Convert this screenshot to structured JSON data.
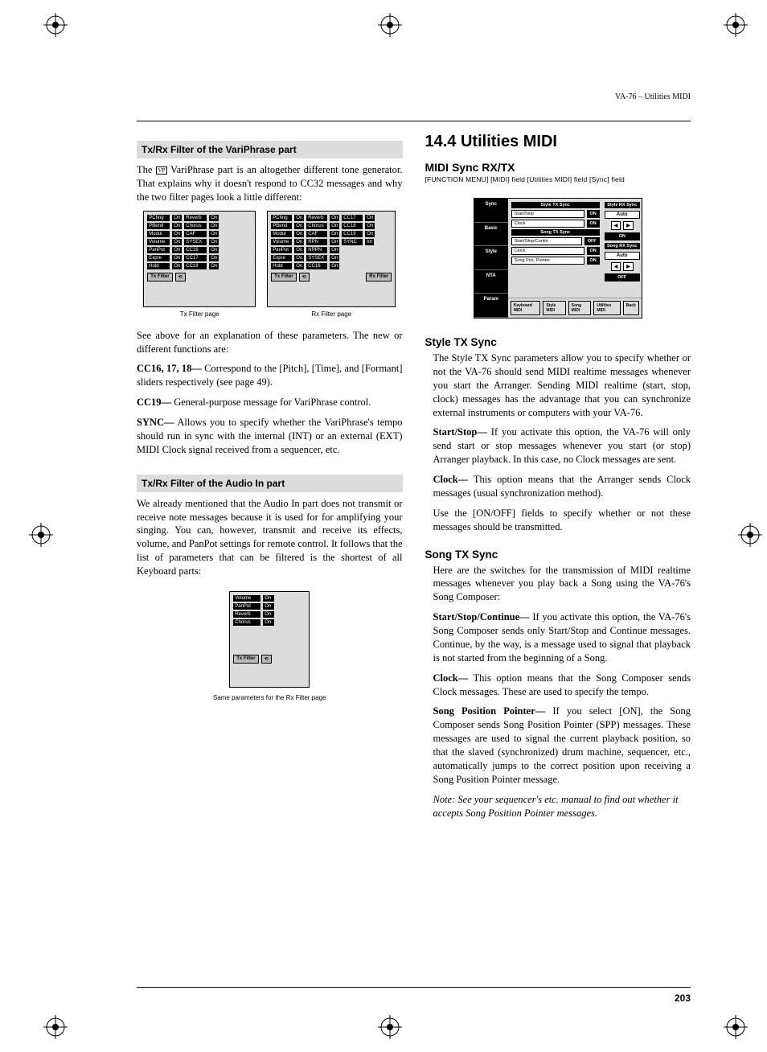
{
  "header": {
    "running_head": "VA-76 – Utilities MIDI"
  },
  "page_number": "203",
  "left": {
    "sec1_heading": "Tx/Rx Filter of the VariPhrase part",
    "p1a": "The ",
    "p1_icon_label": "VP",
    "p1b": " VariPhrase part is an altogether different tone generator. That explains why it doesn't respond to CC32 messages and why the two filter pages look a little different:",
    "tx_caption": "Tx Filter page",
    "rx_caption": "Rx Filter page",
    "tx_rows": [
      [
        "PChng",
        "On",
        "Reverb",
        "On"
      ],
      [
        "PBend",
        "On",
        "Chorus",
        "On"
      ],
      [
        "Modul",
        "On",
        "CAF",
        "On"
      ],
      [
        "Volume",
        "On",
        "SYSEX",
        "On"
      ],
      [
        "PanPot",
        "On",
        "CC16",
        "On"
      ],
      [
        "Expre",
        "On",
        "CC17",
        "On"
      ],
      [
        "Hold",
        "On",
        "CC18",
        "On"
      ]
    ],
    "rx_rows": [
      [
        "PChng",
        "On",
        "Reverb",
        "On",
        "CC17",
        "On"
      ],
      [
        "PBend",
        "On",
        "Chorus",
        "On",
        "CC18",
        "On"
      ],
      [
        "Modul",
        "On",
        "CAF",
        "On",
        "CC19",
        "On"
      ],
      [
        "Volume",
        "On",
        "RPN",
        "On",
        "SYNC",
        "Int"
      ],
      [
        "PanPot",
        "On",
        "NRPN",
        "On",
        "",
        ""
      ],
      [
        "Expre",
        "On",
        "SYSEX",
        "On",
        "",
        ""
      ],
      [
        "Hold",
        "On",
        "CC16",
        "On",
        "",
        ""
      ]
    ],
    "tx_btn": "Tx Filter",
    "rx_btn": "Rx Filter",
    "p2": "See above for an explanation of these parameters. The new or different functions are:",
    "cc16_label": "CC16, 17, 18—",
    "cc16_text": " Correspond to the [Pitch], [Time], and [Formant] sliders respectively (see page 49).",
    "cc19_label": "CC19—",
    "cc19_text": " General-purpose message for VariPhrase control.",
    "sync_label": "SYNC—",
    "sync_text": " Allows you to specify whether the VariPhrase's tempo should run in sync with the internal (INT) or an external (EXT) MIDI Clock signal received from a sequencer, etc.",
    "sec2_heading": "Tx/Rx Filter of the Audio In part",
    "p3": "We already mentioned that the Audio In part does not transmit or receive note messages because it is used for for amplifying your singing. You can, however, transmit and receive its effects, volume, and PanPot settings for remote control. It follows that the list of parameters that can be filtered is the shortest of all Keyboard parts:",
    "audio_rows": [
      [
        "Volume",
        "On"
      ],
      [
        "PanPot",
        "On"
      ],
      [
        "Reverb",
        "On"
      ],
      [
        "Chorus",
        "On"
      ]
    ],
    "audio_btn": "Tx Filter",
    "audio_caption": "Same parameters for the Rx Filter page"
  },
  "right": {
    "sec_heading": "14.4 Utilities MIDI",
    "h_midi_sync": "MIDI Sync RX/TX",
    "breadcrumb_items": [
      "[FUNCTION MENU]",
      "[MIDI] field",
      "[Utilities MIDI] field",
      "[Sync] field"
    ],
    "util_lcd": {
      "side_tabs": [
        "Sync",
        "Basic",
        "Style",
        "NTA",
        "Param"
      ],
      "header1": "Style TX Sync",
      "row1_label": "Start/Stop",
      "row1_val": "ON",
      "row2_label": "Clock",
      "row2_val": "ON",
      "header2": "Song TX Sync",
      "row3_label": "Start/Stop/Contin",
      "row3_val": "OFF",
      "row4_label": "Clock",
      "row4_val": "ON",
      "row5_label": "Song Pos. Pointer",
      "row5_val": "ON",
      "right_hdr1": "Style RX Sync",
      "right_val1": "Auto",
      "right_on1": "ON",
      "right_hdr2": "Song RX Sync",
      "right_val2": "Auto",
      "right_on2": "OFF",
      "bottom": [
        "Keyboard\nMIDI",
        "Style\nMIDI",
        "Song\nMIDI",
        "Utilities\nMIDI",
        "Back"
      ]
    },
    "h_style": "Style TX Sync",
    "style_p1": "The Style TX Sync parameters allow you to specify whether or not the VA-76 should send MIDI realtime messages whenever you start the Arranger. Sending MIDI realtime (start, stop, clock) messages has the advantage that you can synchronize external instruments or computers with your VA-76.",
    "style_ss_label": "Start/Stop—",
    "style_ss_text": " If you activate this option, the VA-76 will only send start or stop messages whenever you start (or stop) Arranger playback. In this case, no Clock messages are sent.",
    "style_clk_label": "Clock—",
    "style_clk_text": " This option means that the Arranger sends Clock messages (usual synchronization method).",
    "style_p2": "Use the [ON/OFF] fields to specify whether or not these messages should be transmitted.",
    "h_song": "Song TX Sync",
    "song_p1": "Here are the switches for the transmission of MIDI realtime messages whenever you play back a Song using the VA-76's Song Composer:",
    "song_ssc_label": "Start/Stop/Continue—",
    "song_ssc_text": " If you activate this option, the VA-76's Song Composer sends only Start/Stop and Continue messages. Continue, by the way, is a message used to signal that playback is not started from the beginning of a Song.",
    "song_clk_label": "Clock—",
    "song_clk_text": " This option means that the Song Composer sends Clock messages. These are used to specify the tempo.",
    "song_spp_label": "Song Position Pointer—",
    "song_spp_text": " If you select [ON], the Song Composer sends Song Position Pointer (SPP) messages. These messages are used to signal the current playback position, so that the slaved (synchronized) drum machine, sequencer, etc., automatically jumps to the correct position upon receiving a Song Position Pointer message.",
    "song_note": "Note: See your sequencer's etc. manual to find out whether it accepts Song Position Pointer messages."
  }
}
